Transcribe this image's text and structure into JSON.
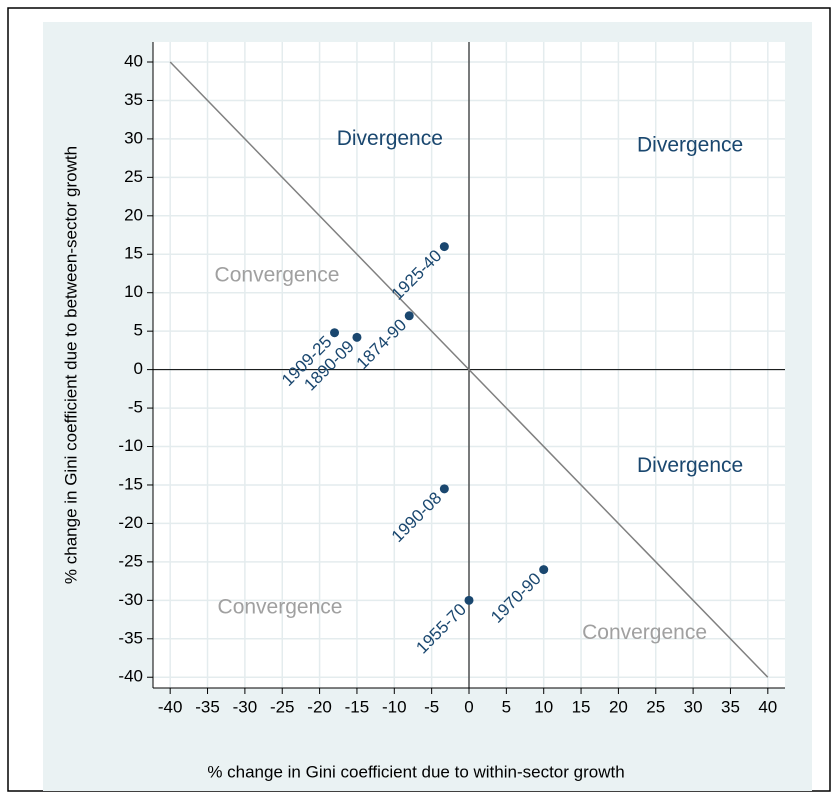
{
  "chart_data": {
    "type": "scatter",
    "x_label": "% change in Gini coefficient due to within-sector growth",
    "y_label": "% change in Gini coefficient due to between-sector growth",
    "series": [
      {
        "color": "#1a476f",
        "x": [
          -3.3,
          -8,
          -15,
          -18,
          -3.3,
          0,
          10
        ],
        "values": [
          16,
          7,
          4.2,
          4.8,
          -15.5,
          -30,
          -26
        ],
        "point_labels": [
          "1925-40",
          "1874-90",
          "1890-09",
          "1909-25",
          "1990-08",
          "1955-70",
          "1970-90"
        ]
      }
    ],
    "xlim": [
      -42.3,
      42.3
    ],
    "ylim": [
      -41.4,
      42.6
    ],
    "xticks": [
      -40,
      -35,
      -30,
      -25,
      -20,
      -15,
      -10,
      -5,
      0,
      5,
      10,
      15,
      20,
      25,
      30,
      35,
      40
    ],
    "yticks": [
      -40,
      -35,
      -30,
      -25,
      -20,
      -15,
      -10,
      -5,
      0,
      5,
      10,
      15,
      20,
      25,
      30,
      35,
      40
    ],
    "grid": true,
    "hlines": [
      0
    ],
    "vlines": [
      0
    ],
    "lines": [
      {
        "x": [
          -40,
          40
        ],
        "values": [
          40,
          -40
        ],
        "color": "#808080"
      }
    ],
    "annotations": [
      {
        "text": "Divergence",
        "x": -10.6,
        "y": 29.9,
        "color": "#1a476f"
      },
      {
        "text": "Divergence",
        "x": 29.6,
        "y": 29.1,
        "color": "#1a476f"
      },
      {
        "text": "Divergence",
        "x": 29.6,
        "y": -12.6,
        "color": "#1a476f"
      },
      {
        "text": "Convergence",
        "x": -25.7,
        "y": 12.2,
        "color": "#a0a0a0"
      },
      {
        "text": "Convergence",
        "x": -25.3,
        "y": -31,
        "color": "#a0a0a0"
      },
      {
        "text": "Convergence",
        "x": 23.5,
        "y": -34.3,
        "color": "#a0a0a0"
      }
    ]
  }
}
